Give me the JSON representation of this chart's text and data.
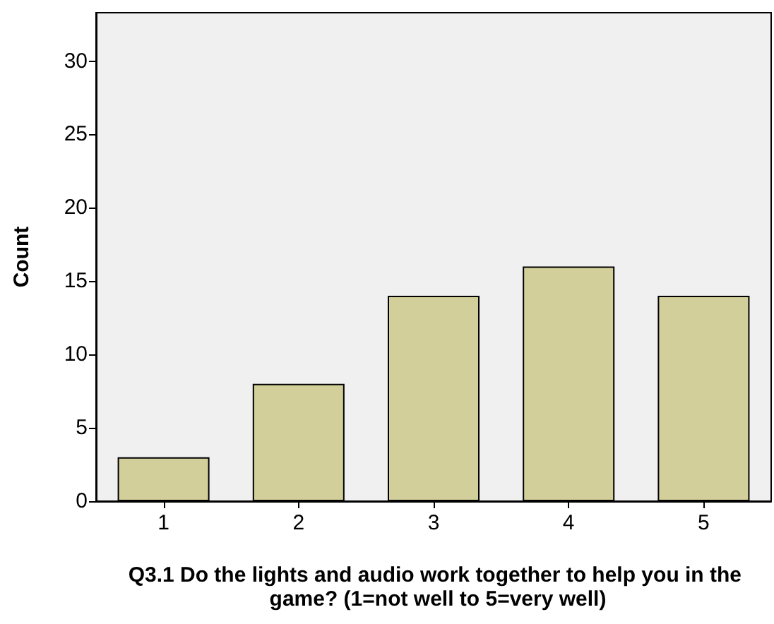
{
  "chart_data": {
    "type": "bar",
    "xlabel": "Q3.1 Do the lights and audio work together to help you in the game? (1=not well to 5=very well)",
    "ylabel": "Count",
    "categories": [
      "1",
      "2",
      "3",
      "4",
      "5"
    ],
    "values": [
      3,
      8,
      14,
      16,
      14
    ],
    "color": "#d3cf9a",
    "ylim": [
      0,
      33.3
    ],
    "yticks": [
      0,
      5,
      10,
      15,
      20,
      25,
      30
    ],
    "grid": false
  }
}
